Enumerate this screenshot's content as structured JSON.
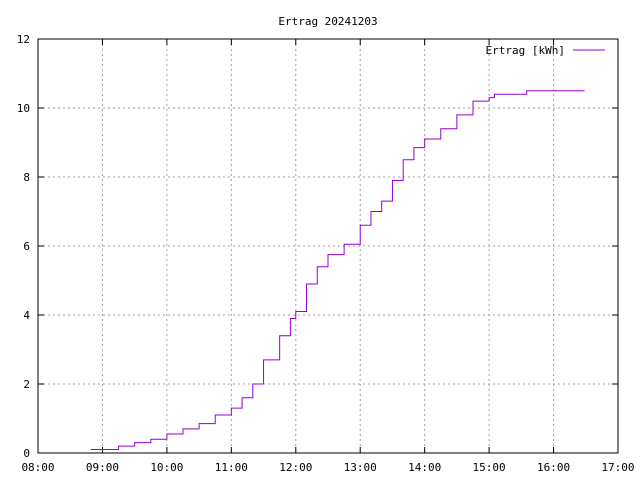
{
  "chart_data": {
    "type": "line",
    "title": "Ertrag 20241203",
    "xlabel": "",
    "ylabel": "",
    "xlim": [
      "08:00",
      "17:00"
    ],
    "ylim": [
      0,
      12
    ],
    "x_ticks": [
      "08:00",
      "09:00",
      "10:00",
      "11:00",
      "12:00",
      "13:00",
      "14:00",
      "15:00",
      "16:00",
      "17:00"
    ],
    "y_ticks": [
      "0",
      "2",
      "4",
      "6",
      "8",
      "10",
      "12"
    ],
    "grid": true,
    "legend_position": "top-right",
    "series": [
      {
        "name": "Ertrag [kWh]",
        "color": "#9400d3",
        "step": true,
        "points": [
          [
            "08:49",
            0.1
          ],
          [
            "09:15",
            0.2
          ],
          [
            "09:30",
            0.3
          ],
          [
            "09:45",
            0.4
          ],
          [
            "10:00",
            0.55
          ],
          [
            "10:15",
            0.7
          ],
          [
            "10:30",
            0.85
          ],
          [
            "10:45",
            1.1
          ],
          [
            "11:00",
            1.3
          ],
          [
            "11:10",
            1.6
          ],
          [
            "11:20",
            2.0
          ],
          [
            "11:30",
            2.7
          ],
          [
            "11:45",
            3.4
          ],
          [
            "11:55",
            3.9
          ],
          [
            "12:00",
            4.1
          ],
          [
            "12:10",
            4.9
          ],
          [
            "12:20",
            5.4
          ],
          [
            "12:30",
            5.75
          ],
          [
            "12:45",
            6.05
          ],
          [
            "13:00",
            6.6
          ],
          [
            "13:10",
            7.0
          ],
          [
            "13:20",
            7.3
          ],
          [
            "13:30",
            7.9
          ],
          [
            "13:40",
            8.5
          ],
          [
            "13:50",
            8.85
          ],
          [
            "14:00",
            9.1
          ],
          [
            "14:15",
            9.4
          ],
          [
            "14:30",
            9.8
          ],
          [
            "14:45",
            10.2
          ],
          [
            "15:00",
            10.3
          ],
          [
            "15:05",
            10.4
          ],
          [
            "15:35",
            10.5
          ],
          [
            "16:29",
            10.5
          ]
        ]
      }
    ]
  }
}
